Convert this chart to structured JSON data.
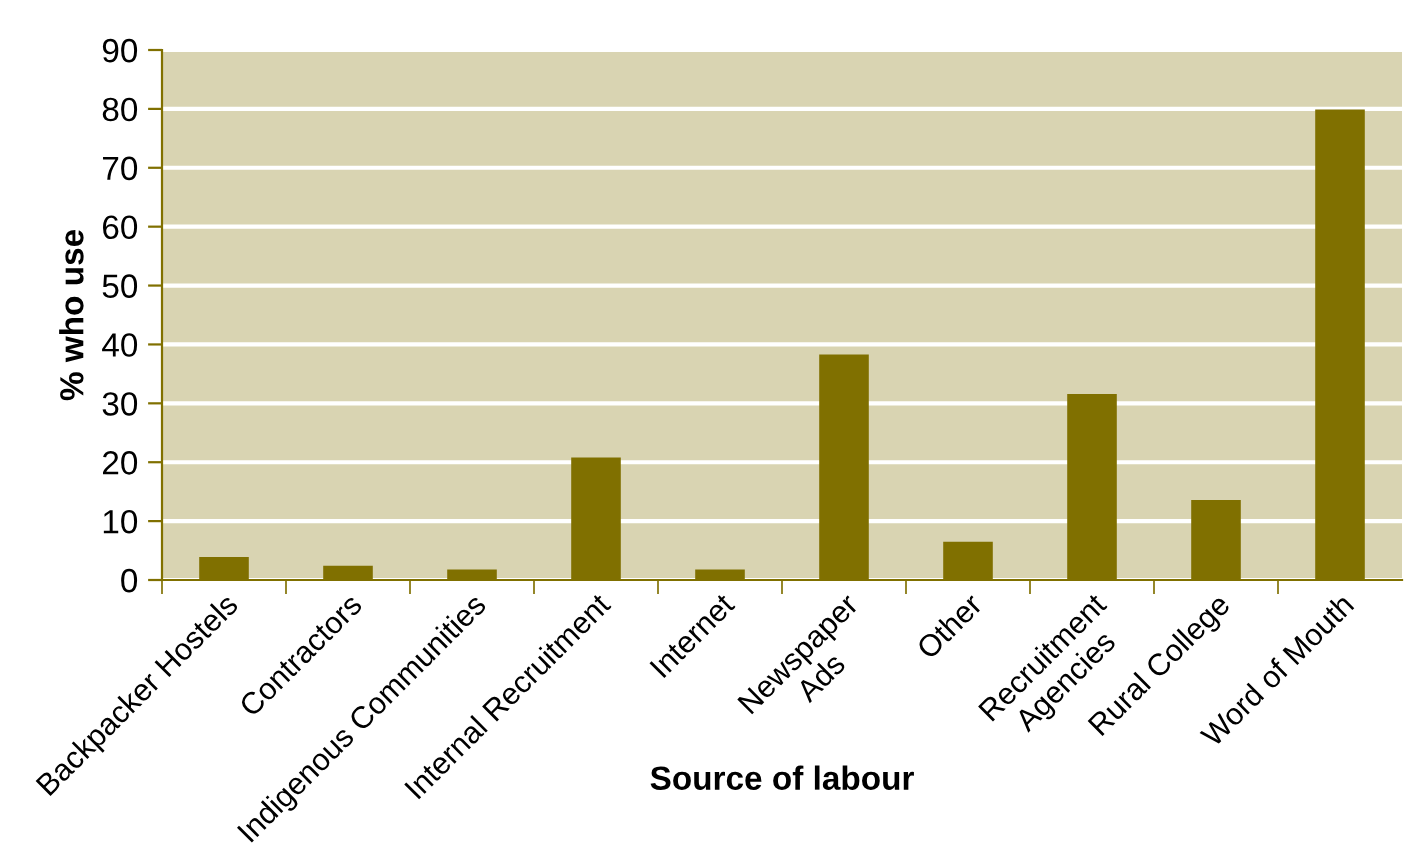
{
  "chart_data": {
    "type": "bar",
    "xlabel": "Source of labour",
    "ylabel": "% who use",
    "categories": [
      "Backpacker Hostels",
      "Contractors",
      "Indigenous Communities",
      "Internal Recruitment",
      "Internet",
      "Newspaper\nAds",
      "Other",
      "Recruitment\nAgencies",
      "Rural College",
      "Word of Mouth"
    ],
    "values": [
      3.9,
      2.4,
      1.8,
      20.8,
      1.8,
      38.3,
      6.5,
      31.6,
      13.6,
      79.9
    ],
    "color": "#807000",
    "ylim": [
      0,
      90
    ],
    "yticks": [
      0,
      10,
      20,
      30,
      40,
      50,
      60,
      70,
      80,
      90
    ],
    "grid": "y"
  }
}
